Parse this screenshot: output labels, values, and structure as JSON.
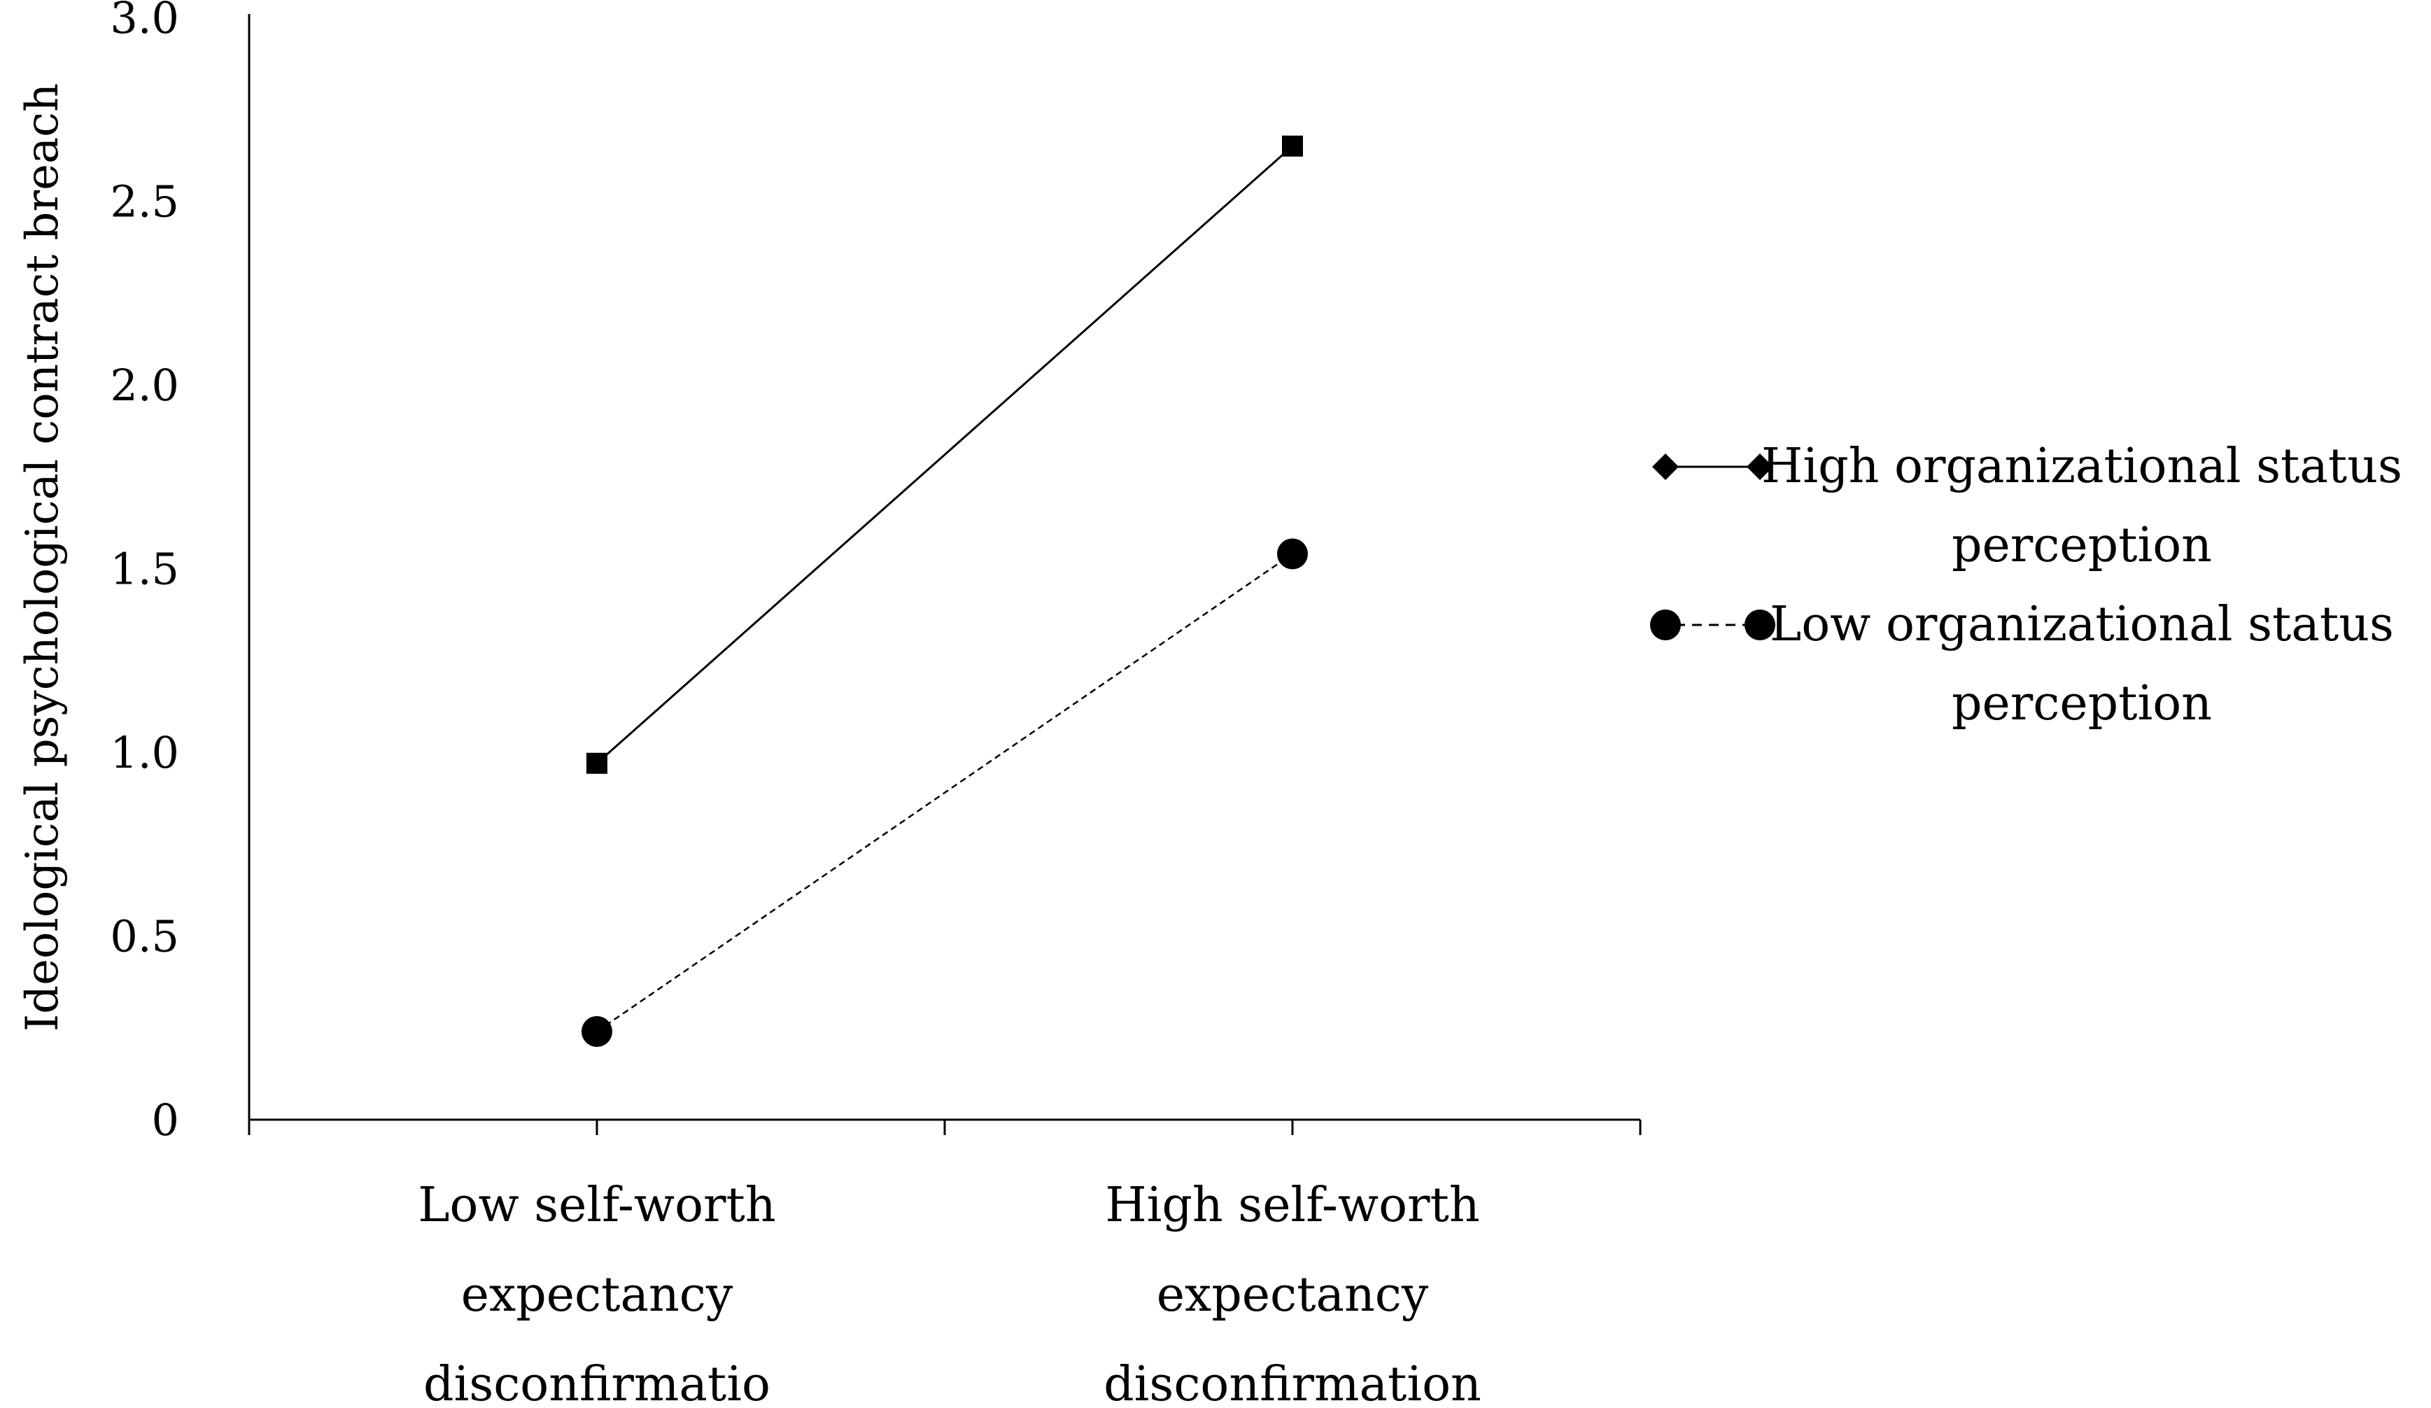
{
  "chart_data": {
    "type": "line",
    "title": "",
    "xlabel": "",
    "ylabel": "Ideological psychological contract breach",
    "categories": [
      [
        "Low self-worth",
        "expectancy",
        "disconfirmatio"
      ],
      [
        "High self-worth",
        "expectancy",
        "disconfirmation"
      ]
    ],
    "ylim": [
      0,
      3.0
    ],
    "yticks": [
      {
        "value": 0,
        "label": "0"
      },
      {
        "value": 0.5,
        "label": "0.5"
      },
      {
        "value": 1.0,
        "label": "1.0"
      },
      {
        "value": 1.5,
        "label": "1.5"
      },
      {
        "value": 2.0,
        "label": "2.0"
      },
      {
        "value": 2.5,
        "label": "2.5"
      },
      {
        "value": 3.0,
        "label": "3.0"
      }
    ],
    "grid": false,
    "legend_position": "right",
    "series": [
      {
        "name": "High organizational status perception",
        "legend_lines": [
          "High organizational status",
          "perception"
        ],
        "values": [
          0.97,
          2.65
        ],
        "line_style": "solid",
        "marker": "square",
        "color": "#000000"
      },
      {
        "name": "Low organizational status perception",
        "legend_lines": [
          "Low organizational status",
          "perception"
        ],
        "values": [
          0.24,
          1.54
        ],
        "line_style": "dashed",
        "marker": "circle",
        "color": "#000000"
      }
    ]
  }
}
